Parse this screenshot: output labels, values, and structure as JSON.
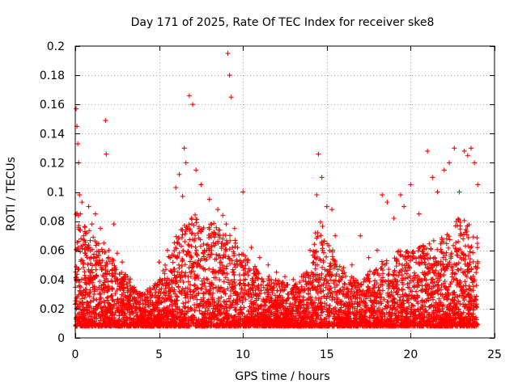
{
  "chart_data": {
    "type": "scatter",
    "title": "Day 171 of 2025, Rate Of TEC Index for receiver ske8",
    "xlabel": "GPS time / hours",
    "ylabel": "ROTI / TECUs",
    "xlim": [
      0,
      25
    ],
    "ylim": [
      0,
      0.2
    ],
    "xticks": [
      0,
      5,
      10,
      15,
      20,
      25
    ],
    "yticks": [
      0,
      0.02,
      0.04,
      0.06,
      0.08,
      0.1,
      0.12,
      0.14,
      0.16,
      0.18,
      0.2
    ],
    "xtick_labels": [
      "0",
      "5",
      "10",
      "15",
      "20",
      "25"
    ],
    "ytick_labels": [
      "0",
      "0.02",
      "0.04",
      "0.06",
      "0.08",
      "0.1",
      "0.12",
      "0.14",
      "0.16",
      "0.18",
      "0.2"
    ],
    "grid": true,
    "marker": "+",
    "series": [
      {
        "name": "ROTI",
        "color": "#ff0000",
        "note": "dense cloud of several thousand points; representative samples listed (hours, TECU/s)",
        "x": [
          0.05,
          0.1,
          0.15,
          0.2,
          0.25,
          0.3,
          0.4,
          0.5,
          0.6,
          0.8,
          1.0,
          1.2,
          1.5,
          1.7,
          1.8,
          1.85,
          2.0,
          2.3,
          2.5,
          2.8,
          3.2,
          3.5,
          4.0,
          4.5,
          5.0,
          5.5,
          6.0,
          6.2,
          6.4,
          6.5,
          6.6,
          6.8,
          7.0,
          7.2,
          7.5,
          8.0,
          8.5,
          8.8,
          9.0,
          9.1,
          9.2,
          9.3,
          9.5,
          10.0,
          10.5,
          11.0,
          11.5,
          12.0,
          12.5,
          13.0,
          13.5,
          14.0,
          14.4,
          14.5,
          14.7,
          15.0,
          15.3,
          15.5,
          16.0,
          16.5,
          17.0,
          17.5,
          18.0,
          18.3,
          18.6,
          19.0,
          19.4,
          19.6,
          20.0,
          20.5,
          21.0,
          21.3,
          21.6,
          22.0,
          22.3,
          22.6,
          22.9,
          23.2,
          23.4,
          23.6,
          23.8,
          24.0
        ],
        "y": [
          0.157,
          0.145,
          0.133,
          0.12,
          0.098,
          0.085,
          0.093,
          0.07,
          0.064,
          0.09,
          0.078,
          0.085,
          0.075,
          0.065,
          0.149,
          0.126,
          0.06,
          0.078,
          0.058,
          0.052,
          0.04,
          0.032,
          0.03,
          0.033,
          0.052,
          0.06,
          0.103,
          0.112,
          0.097,
          0.13,
          0.12,
          0.166,
          0.16,
          0.115,
          0.105,
          0.095,
          0.088,
          0.084,
          0.078,
          0.195,
          0.18,
          0.165,
          0.075,
          0.1,
          0.062,
          0.055,
          0.05,
          0.045,
          0.042,
          0.04,
          0.042,
          0.06,
          0.098,
          0.126,
          0.11,
          0.09,
          0.088,
          0.07,
          0.048,
          0.05,
          0.07,
          0.055,
          0.06,
          0.098,
          0.093,
          0.082,
          0.098,
          0.09,
          0.105,
          0.085,
          0.128,
          0.11,
          0.1,
          0.115,
          0.12,
          0.13,
          0.1,
          0.128,
          0.125,
          0.13,
          0.12,
          0.105
        ]
      }
    ]
  }
}
